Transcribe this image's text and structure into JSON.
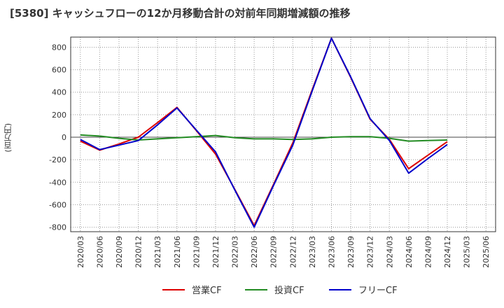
{
  "chart_data": {
    "type": "line",
    "title": "[5380]  キャッシュフローの12か月移動合計の対前年同期増減額の推移",
    "ylabel": "(百万円)",
    "xlabel": "",
    "ylim": [
      -840,
      890
    ],
    "yticks": [
      800,
      600,
      400,
      200,
      0,
      -200,
      -400,
      -600,
      -800
    ],
    "x": [
      "2020/03",
      "2020/06",
      "2020/09",
      "2020/12",
      "2021/03",
      "2021/06",
      "2021/09",
      "2021/12",
      "2022/03",
      "2022/06",
      "2022/09",
      "2022/12",
      "2023/03",
      "2023/06",
      "2023/09",
      "2023/12",
      "2024/03",
      "2024/06",
      "2024/09",
      "2024/12",
      "2025/03",
      "2025/06"
    ],
    "series": [
      {
        "name": "営業CF",
        "color": "#dd0000",
        "values": [
          -35,
          -115,
          -60,
          0,
          130,
          265,
          60,
          -150,
          -465,
          -785,
          -420,
          -50,
          420,
          880,
          530,
          160,
          -20,
          -280,
          -160,
          -40,
          null,
          null
        ]
      },
      {
        "name": "投資CF",
        "color": "#228b22",
        "values": [
          20,
          10,
          -10,
          -25,
          -15,
          -5,
          5,
          15,
          -5,
          -15,
          -15,
          -20,
          -15,
          0,
          5,
          5,
          -10,
          -35,
          -30,
          -25,
          null,
          null
        ]
      },
      {
        "name": "フリーCF",
        "color": "#0000cc",
        "values": [
          -20,
          -110,
          -70,
          -30,
          110,
          260,
          65,
          -130,
          -470,
          -800,
          -430,
          -70,
          410,
          880,
          535,
          165,
          -30,
          -320,
          -190,
          -65,
          null,
          null
        ]
      }
    ]
  }
}
